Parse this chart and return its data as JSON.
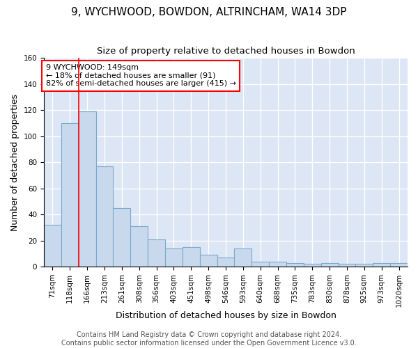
{
  "title": "9, WYCHWOOD, BOWDON, ALTRINCHAM, WA14 3DP",
  "subtitle": "Size of property relative to detached houses in Bowdon",
  "xlabel": "Distribution of detached houses by size in Bowdon",
  "ylabel": "Number of detached properties",
  "bar_color": "#c9d9ed",
  "bar_edge_color": "#7aa8cc",
  "background_color": "#dce6f4",
  "grid_color": "white",
  "categories": [
    "71sqm",
    "118sqm",
    "166sqm",
    "213sqm",
    "261sqm",
    "308sqm",
    "356sqm",
    "403sqm",
    "451sqm",
    "498sqm",
    "546sqm",
    "593sqm",
    "640sqm",
    "688sqm",
    "735sqm",
    "783sqm",
    "830sqm",
    "878sqm",
    "925sqm",
    "973sqm",
    "1020sqm"
  ],
  "hist_values": [
    32,
    110,
    119,
    77,
    45,
    31,
    21,
    14,
    15,
    9,
    7,
    14,
    4,
    4,
    3,
    2,
    3,
    2,
    2,
    3,
    3
  ],
  "annotation_text": "9 WYCHWOOD: 149sqm\n← 18% of detached houses are smaller (91)\n82% of semi-detached houses are larger (415) →",
  "annotation_box_color": "white",
  "annotation_border_color": "red",
  "red_line_x": 1.5,
  "ylim": [
    0,
    160
  ],
  "yticks": [
    0,
    20,
    40,
    60,
    80,
    100,
    120,
    140,
    160
  ],
  "footer_text": "Contains HM Land Registry data © Crown copyright and database right 2024.\nContains public sector information licensed under the Open Government Licence v3.0.",
  "title_fontsize": 11,
  "subtitle_fontsize": 9.5,
  "xlabel_fontsize": 9,
  "ylabel_fontsize": 9,
  "tick_fontsize": 7.5,
  "footer_fontsize": 7,
  "annot_fontsize": 8
}
